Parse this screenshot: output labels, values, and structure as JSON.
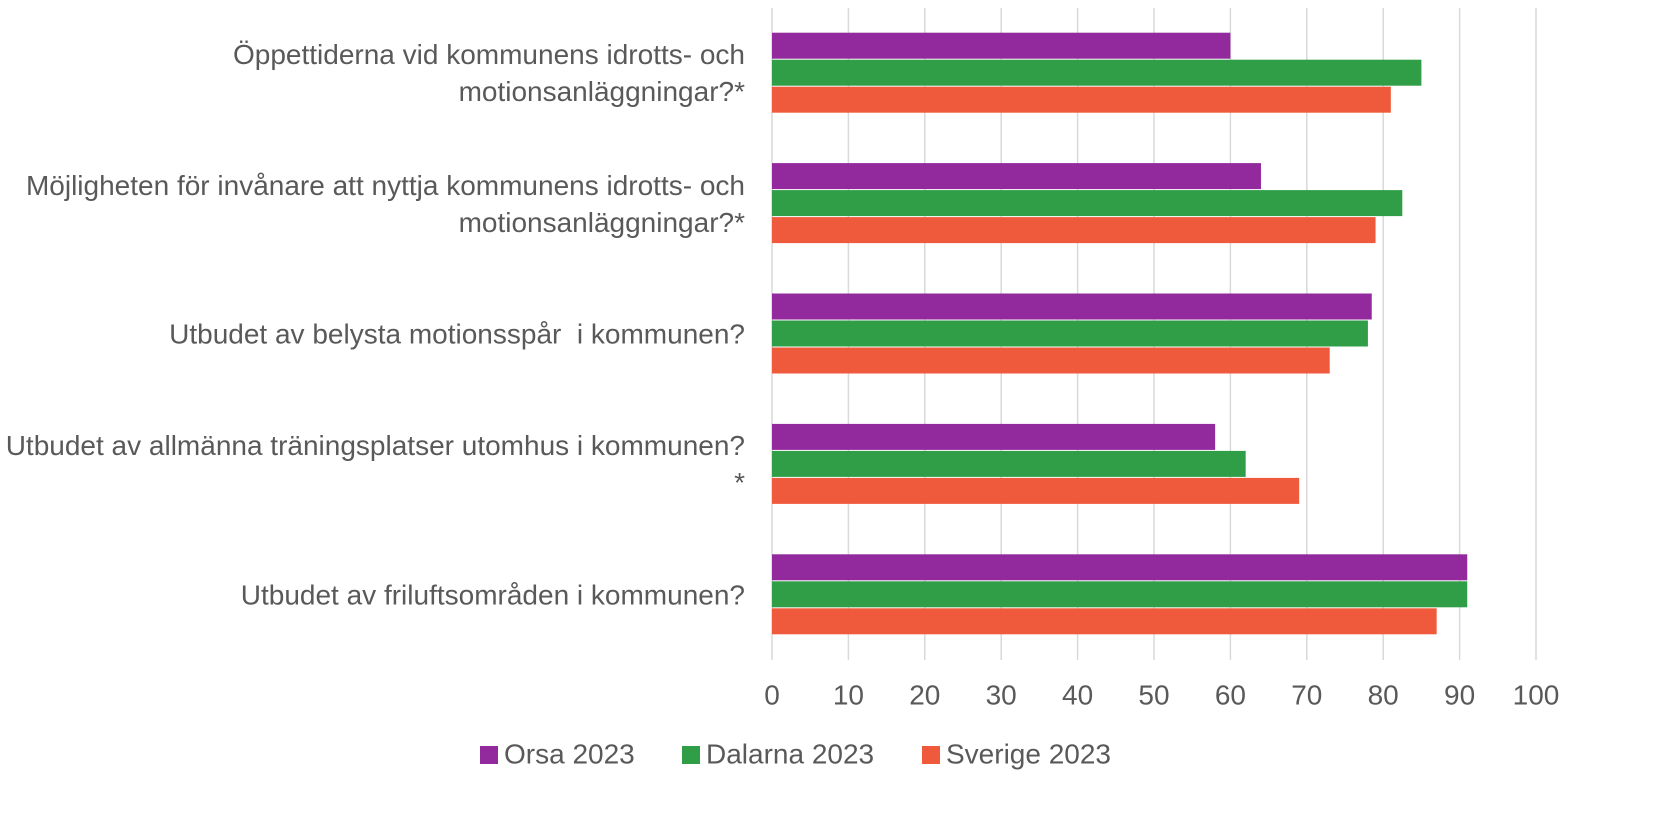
{
  "chart_data": {
    "type": "barh",
    "categories": [
      "Öppettiderna vid kommunens idrotts- och motionsanläggningar?*",
      "Möjligheten för invånare att nyttja kommunens idrotts- och motionsanläggningar?*",
      "Utbudet av belysta motionsspår  i kommunen?",
      "Utbudet av allmänna träningsplatser utomhus i kommunen?*",
      "Utbudet av friluftsområden i kommunen?"
    ],
    "series": [
      {
        "name": "Orsa 2023",
        "color": "#92299c",
        "values": [
          60,
          64,
          78.5,
          58,
          91
        ]
      },
      {
        "name": "Dalarna 2023",
        "color": "#2f9e47",
        "values": [
          85,
          82.5,
          78,
          62,
          91
        ]
      },
      {
        "name": "Sverige 2023",
        "color": "#f05a3c",
        "values": [
          81,
          79,
          73,
          69,
          87
        ]
      }
    ],
    "xlim": [
      0,
      100
    ],
    "xticks": [
      0,
      10,
      20,
      30,
      40,
      50,
      60,
      70,
      80,
      90,
      100
    ],
    "grid": true,
    "legend": "bottom"
  }
}
